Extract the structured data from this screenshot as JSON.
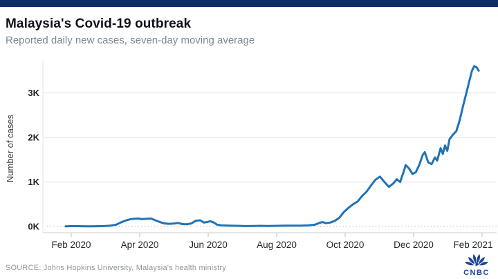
{
  "header": {
    "title": "Malaysia's Covid-19 outbreak",
    "subtitle": "Reported daily new cases, seven-day moving average"
  },
  "footer": {
    "source": "SOURCE: Johns Hopkins University, Malaysia's health ministry",
    "logo_text": "CNBC",
    "logo_icon": "cnbc-peacock-icon"
  },
  "colors": {
    "top_bar": "#0d2f63",
    "line": "#1f72b7",
    "grid": "#e8e8e8",
    "zero_line": "#c4c4c4",
    "axis": "#d8d8d8",
    "tick_label": "#23272e",
    "subtitle_gray": "#7b8894",
    "logo_navy": "#1c449c"
  },
  "chart_data": {
    "type": "line",
    "title": "Malaysia's Covid-19 outbreak",
    "subtitle": "Reported daily new cases, seven-day moving average",
    "ylabel": "Number of cases",
    "xlabel": "",
    "unit": "thousands of cases",
    "ylim": [
      0,
      3.7
    ],
    "grid": "horizontal",
    "legend": "none",
    "y_ticks": [
      "0K",
      "1K",
      "2K",
      "3K"
    ],
    "x_ticks": [
      "Feb 2020",
      "Apr 2020",
      "Jun 2020",
      "Aug 2020",
      "Oct 2020",
      "Dec 2020",
      "Feb 2021"
    ],
    "series_name": "Daily new cases, 7-day moving average (thousands)",
    "points": [
      [
        "2020-01-27",
        0.005
      ],
      [
        "2020-02-03",
        0.01
      ],
      [
        "2020-02-10",
        0.006
      ],
      [
        "2020-02-17",
        0.004
      ],
      [
        "2020-02-24",
        0.006
      ],
      [
        "2020-03-01",
        0.01
      ],
      [
        "2020-03-07",
        0.02
      ],
      [
        "2020-03-12",
        0.04
      ],
      [
        "2020-03-16",
        0.09
      ],
      [
        "2020-03-20",
        0.13
      ],
      [
        "2020-03-24",
        0.16
      ],
      [
        "2020-03-28",
        0.175
      ],
      [
        "2020-04-01",
        0.18
      ],
      [
        "2020-04-04",
        0.165
      ],
      [
        "2020-04-08",
        0.175
      ],
      [
        "2020-04-12",
        0.18
      ],
      [
        "2020-04-16",
        0.14
      ],
      [
        "2020-04-20",
        0.1
      ],
      [
        "2020-04-24",
        0.07
      ],
      [
        "2020-04-28",
        0.06
      ],
      [
        "2020-05-02",
        0.065
      ],
      [
        "2020-05-06",
        0.08
      ],
      [
        "2020-05-10",
        0.055
      ],
      [
        "2020-05-14",
        0.05
      ],
      [
        "2020-05-18",
        0.07
      ],
      [
        "2020-05-22",
        0.13
      ],
      [
        "2020-05-26",
        0.14
      ],
      [
        "2020-05-29",
        0.09
      ],
      [
        "2020-06-01",
        0.1
      ],
      [
        "2020-06-04",
        0.12
      ],
      [
        "2020-06-07",
        0.09
      ],
      [
        "2020-06-10",
        0.04
      ],
      [
        "2020-06-14",
        0.025
      ],
      [
        "2020-06-21",
        0.02
      ],
      [
        "2020-06-28",
        0.015
      ],
      [
        "2020-07-05",
        0.01
      ],
      [
        "2020-07-12",
        0.012
      ],
      [
        "2020-07-19",
        0.015
      ],
      [
        "2020-07-26",
        0.012
      ],
      [
        "2020-08-02",
        0.015
      ],
      [
        "2020-08-09",
        0.018
      ],
      [
        "2020-08-16",
        0.02
      ],
      [
        "2020-08-23",
        0.018
      ],
      [
        "2020-08-30",
        0.025
      ],
      [
        "2020-09-05",
        0.04
      ],
      [
        "2020-09-09",
        0.08
      ],
      [
        "2020-09-12",
        0.1
      ],
      [
        "2020-09-15",
        0.075
      ],
      [
        "2020-09-19",
        0.09
      ],
      [
        "2020-09-23",
        0.13
      ],
      [
        "2020-09-27",
        0.2
      ],
      [
        "2020-10-01",
        0.33
      ],
      [
        "2020-10-05",
        0.42
      ],
      [
        "2020-10-09",
        0.5
      ],
      [
        "2020-10-13",
        0.56
      ],
      [
        "2020-10-17",
        0.68
      ],
      [
        "2020-10-21",
        0.78
      ],
      [
        "2020-10-25",
        0.92
      ],
      [
        "2020-10-29",
        1.05
      ],
      [
        "2020-11-02",
        1.12
      ],
      [
        "2020-11-06",
        1.0
      ],
      [
        "2020-11-10",
        0.89
      ],
      [
        "2020-11-14",
        0.97
      ],
      [
        "2020-11-17",
        1.06
      ],
      [
        "2020-11-20",
        1.0
      ],
      [
        "2020-11-23",
        1.22
      ],
      [
        "2020-11-25",
        1.38
      ],
      [
        "2020-11-28",
        1.3
      ],
      [
        "2020-12-01",
        1.18
      ],
      [
        "2020-12-04",
        1.22
      ],
      [
        "2020-12-07",
        1.38
      ],
      [
        "2020-12-10",
        1.6
      ],
      [
        "2020-12-12",
        1.67
      ],
      [
        "2020-12-15",
        1.44
      ],
      [
        "2020-12-18",
        1.4
      ],
      [
        "2020-12-21",
        1.55
      ],
      [
        "2020-12-23",
        1.48
      ],
      [
        "2020-12-26",
        1.76
      ],
      [
        "2020-12-28",
        1.63
      ],
      [
        "2020-12-30",
        1.82
      ],
      [
        "2021-01-01",
        1.7
      ],
      [
        "2021-01-03",
        1.96
      ],
      [
        "2021-01-06",
        2.06
      ],
      [
        "2021-01-09",
        2.14
      ],
      [
        "2021-01-12",
        2.38
      ],
      [
        "2021-01-15",
        2.7
      ],
      [
        "2021-01-18",
        3.0
      ],
      [
        "2021-01-21",
        3.3
      ],
      [
        "2021-01-23",
        3.5
      ],
      [
        "2021-01-25",
        3.6
      ],
      [
        "2021-01-27",
        3.58
      ],
      [
        "2021-01-29",
        3.5
      ]
    ]
  }
}
